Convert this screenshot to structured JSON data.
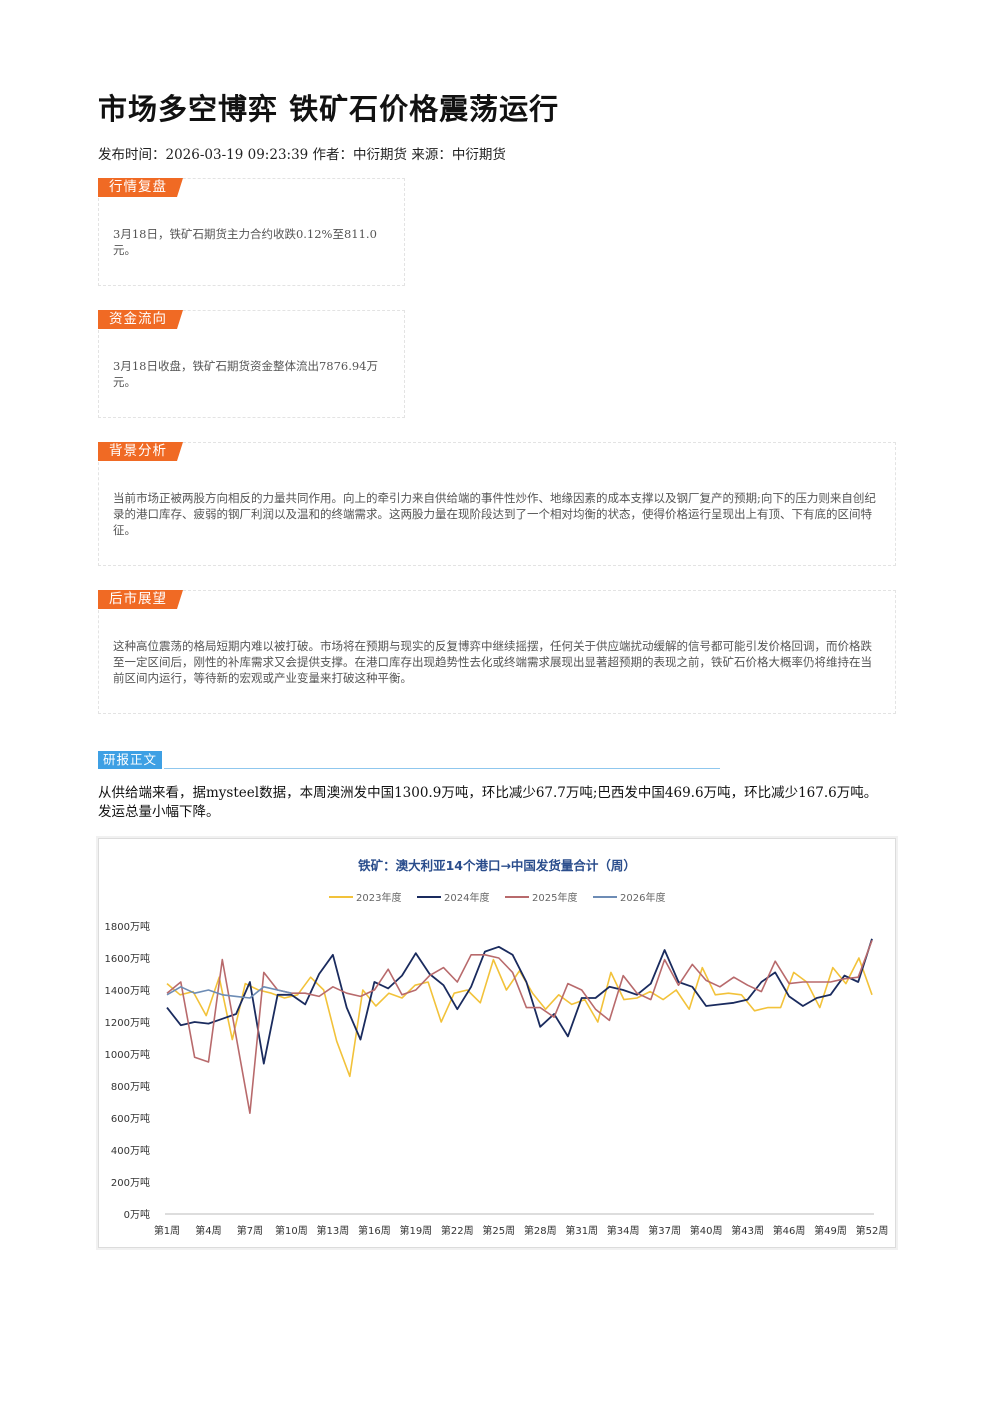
{
  "article": {
    "title": "市场多空博弈 铁矿石价格震荡运行",
    "meta": "发布时间：2026-03-19 09:23:39 作者：中衍期货 来源：中衍期货"
  },
  "sections": {
    "market": {
      "tag": "行情复盘",
      "text": "3月18日，铁矿石期货主力合约收跌0.12%至811.0元。"
    },
    "funds": {
      "tag": "资金流向",
      "text": "3月18日收盘，铁矿石期货资金整体流出7876.94万元。"
    },
    "background": {
      "tag": "背景分析",
      "text": "当前市场正被两股方向相反的力量共同作用。向上的牵引力来自供给端的事件性炒作、地缘因素的成本支撑以及钢厂复产的预期;向下的压力则来自创纪录的港口库存、疲弱的钢厂利润以及温和的终端需求。这两股力量在现阶段达到了一个相对均衡的状态，使得价格运行呈现出上有顶、下有底的区间特征。"
    },
    "outlook": {
      "tag": "后市展望",
      "text": "这种高位震荡的格局短期内难以被打破。市场将在预期与现实的反复博弈中继续摇摆，任何关于供应端扰动缓解的信号都可能引发价格回调，而价格跌至一定区间后，刚性的补库需求又会提供支撑。在港口库存出现趋势性去化或终端需求展现出显著超预期的表现之前，铁矿石价格大概率仍将维持在当前区间内运行，等待新的宏观或产业变量来打破这种平衡。"
    }
  },
  "report": {
    "tag": "研报正文",
    "text": "从供给端来看，据mysteel数据，本周澳洲发中国1300.9万吨，环比减少67.7万吨;巴西发中国469.6万吨，环比减少167.6万吨。发运总量小幅下降。"
  },
  "chart_data": {
    "type": "line",
    "title": "铁矿：澳大利亚14个港口→中国发货量合计（周）",
    "xlabel": "",
    "ylabel": "",
    "unit": "万吨",
    "ylim": [
      0,
      1800
    ],
    "yticks": [
      "0万吨",
      "200万吨",
      "400万吨",
      "600万吨",
      "800万吨",
      "1000万吨",
      "1200万吨",
      "1400万吨",
      "1600万吨",
      "1800万吨"
    ],
    "xtick_labels": [
      "第1周",
      "第4周",
      "第7周",
      "第10周",
      "第13周",
      "第16周",
      "第19周",
      "第22周",
      "第25周",
      "第28周",
      "第31周",
      "第34周",
      "第37周",
      "第40周",
      "第43周",
      "第46周",
      "第49周",
      "第52周"
    ],
    "legend_position": "top",
    "grid": false,
    "series": [
      {
        "name": "2023年度",
        "color": "#f2c23a",
        "values": [
          1440,
          1370,
          1390,
          1240,
          1480,
          1090,
          1440,
          1400,
          1380,
          1350,
          1370,
          1480,
          1400,
          1080,
          860,
          1400,
          1300,
          1380,
          1350,
          1430,
          1450,
          1200,
          1380,
          1400,
          1320,
          1590,
          1400,
          1520,
          1380,
          1280,
          1370,
          1310,
          1340,
          1200,
          1510,
          1340,
          1350,
          1390,
          1340,
          1400,
          1280,
          1540,
          1370,
          1380,
          1370,
          1270,
          1290,
          1290,
          1510,
          1450,
          1290,
          1540,
          1440,
          1600,
          1370
        ]
      },
      {
        "name": "2024年度",
        "color": "#1a2b5e",
        "values": [
          1290,
          1180,
          1200,
          1190,
          1220,
          1250,
          1450,
          940,
          1370,
          1370,
          1310,
          1500,
          1620,
          1290,
          1090,
          1450,
          1410,
          1490,
          1630,
          1500,
          1430,
          1280,
          1420,
          1640,
          1670,
          1620,
          1450,
          1170,
          1250,
          1110,
          1350,
          1350,
          1420,
          1400,
          1370,
          1440,
          1650,
          1450,
          1420,
          1300,
          1310,
          1320,
          1340,
          1450,
          1510,
          1360,
          1300,
          1350,
          1370,
          1490,
          1450,
          1720
        ]
      },
      {
        "name": "2025年度",
        "color": "#b86a6c",
        "values": [
          1380,
          1450,
          980,
          950,
          1590,
          1110,
          630,
          1510,
          1400,
          1380,
          1380,
          1360,
          1420,
          1380,
          1360,
          1400,
          1530,
          1370,
          1400,
          1490,
          1540,
          1450,
          1620,
          1620,
          1600,
          1510,
          1290,
          1290,
          1230,
          1440,
          1400,
          1280,
          1210,
          1490,
          1380,
          1340,
          1590,
          1430,
          1560,
          1460,
          1420,
          1480,
          1430,
          1390,
          1580,
          1440,
          1450,
          1450,
          1450,
          1470,
          1480,
          1710
        ]
      },
      {
        "name": "2026年度",
        "color": "#6d8cb5",
        "values": [
          1370,
          1420,
          1380,
          1400,
          1370,
          1360,
          1350,
          1420,
          1400,
          1380
        ]
      }
    ]
  }
}
